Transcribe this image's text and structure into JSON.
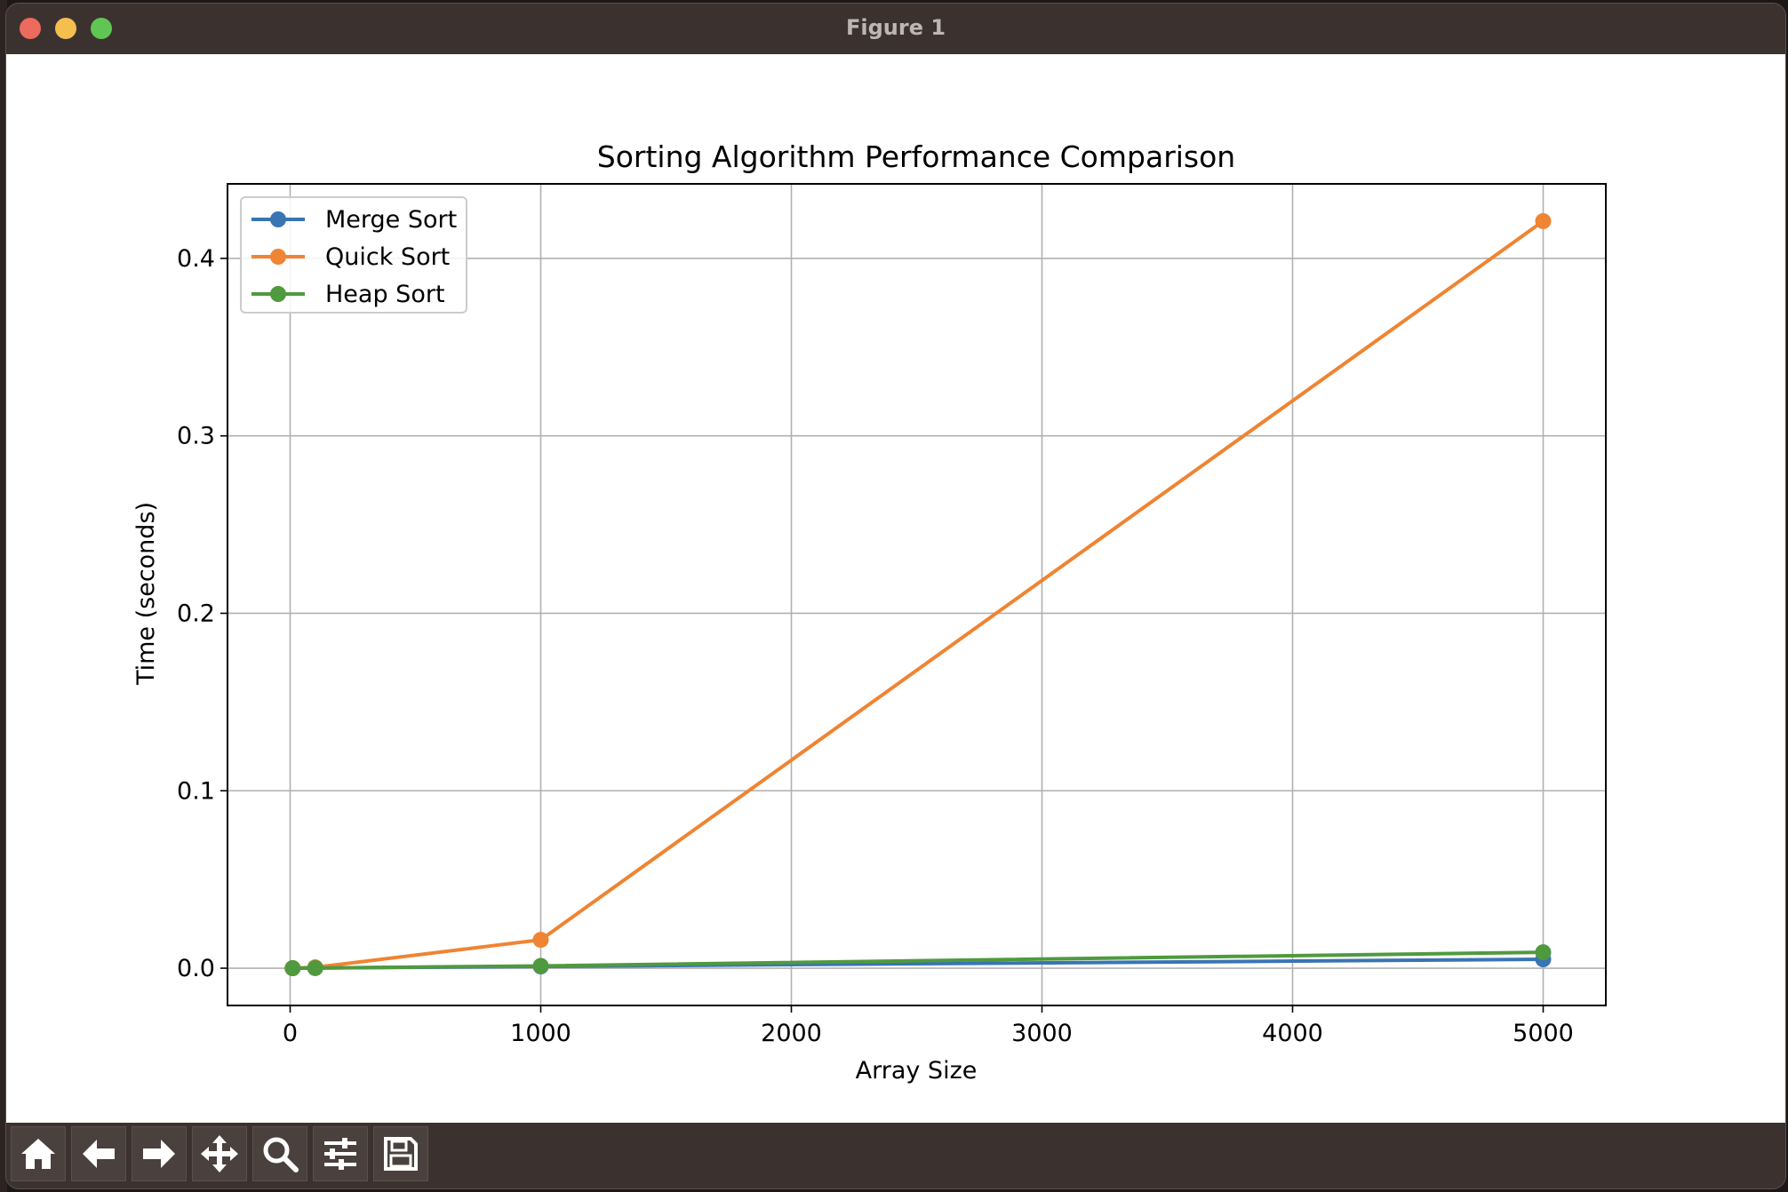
{
  "window": {
    "title": "Figure 1"
  },
  "toolbar": {
    "buttons": [
      {
        "name": "home-button",
        "icon": "home-icon"
      },
      {
        "name": "back-button",
        "icon": "arrow-left-icon"
      },
      {
        "name": "forward-button",
        "icon": "arrow-right-icon"
      },
      {
        "name": "pan-button",
        "icon": "move-icon"
      },
      {
        "name": "zoom-button",
        "icon": "search-icon"
      },
      {
        "name": "configure-subplots-button",
        "icon": "sliders-icon"
      },
      {
        "name": "save-button",
        "icon": "save-icon"
      }
    ]
  },
  "chart_data": {
    "type": "line",
    "title": "Sorting Algorithm Performance Comparison",
    "xlabel": "Array Size",
    "ylabel": "Time (seconds)",
    "xlim": [
      -250,
      5250
    ],
    "ylim": [
      -0.021,
      0.442
    ],
    "xticks": [
      0,
      1000,
      2000,
      3000,
      4000,
      5000
    ],
    "yticks": [
      0.0,
      0.1,
      0.2,
      0.3,
      0.4
    ],
    "xtick_labels": [
      "0",
      "1000",
      "2000",
      "3000",
      "4000",
      "5000"
    ],
    "ytick_labels": [
      "0.0",
      "0.1",
      "0.2",
      "0.3",
      "0.4"
    ],
    "grid": true,
    "legend_position": "top-left",
    "x": [
      10,
      100,
      1000,
      5000
    ],
    "series": [
      {
        "name": "Merge Sort",
        "color": "#3a74b3",
        "values": [
          0.0,
          0.0001,
          0.001,
          0.005
        ]
      },
      {
        "name": "Quick Sort",
        "color": "#ef8432",
        "values": [
          0.0,
          0.0005,
          0.016,
          0.421
        ]
      },
      {
        "name": "Heap Sort",
        "color": "#4f9a3e",
        "values": [
          0.0,
          0.0001,
          0.0013,
          0.009
        ]
      }
    ]
  }
}
